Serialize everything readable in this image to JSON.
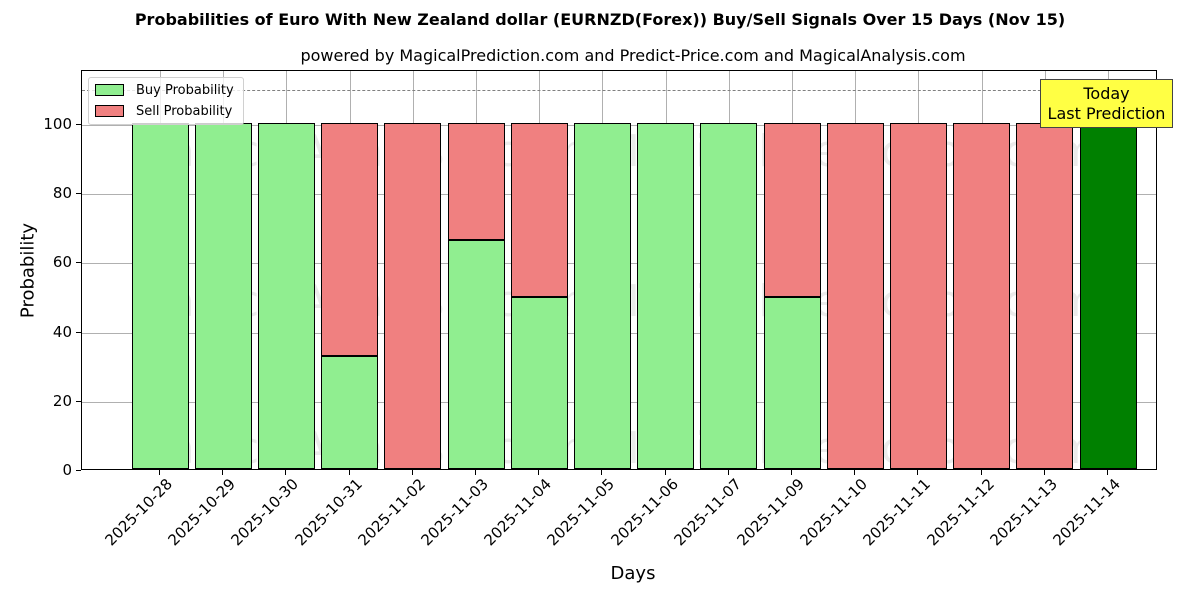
{
  "title": "Probabilities of Euro With New Zealand dollar (EURNZD(Forex)) Buy/Sell Signals Over 15 Days (Nov 15)",
  "subtitle": "powered by MagicalPrediction.com and Predict-Price.com and MagicalAnalysis.com",
  "legend": {
    "buy": "Buy Probability",
    "sell": "Sell Probability"
  },
  "annotation": {
    "line1": "Today",
    "line2": "Last Prediction"
  },
  "watermarks": [
    "MagicalAnalysis.com",
    "MagicalPrediction.com"
  ],
  "colors": {
    "buy": "#90ee90",
    "sell": "#f08080",
    "today": "#008000",
    "annotation_bg": "#ffff44",
    "refline": "#808080"
  },
  "chart_data": {
    "type": "bar",
    "stacked": true,
    "title": "Probabilities of Euro With New Zealand dollar (EURNZD(Forex)) Buy/Sell Signals Over 15 Days (Nov 15)",
    "subtitle": "powered by MagicalPrediction.com and Predict-Price.com and MagicalAnalysis.com",
    "xlabel": "Days",
    "ylabel": "Probability",
    "ylim": [
      0,
      115
    ],
    "yticks": [
      0,
      20,
      40,
      60,
      80,
      100
    ],
    "grid": true,
    "legend_position": "upper left",
    "reference_line": {
      "y": 110,
      "style": "dashed",
      "color": "#808080"
    },
    "categories": [
      "2025-10-28",
      "2025-10-29",
      "2025-10-30",
      "2025-10-31",
      "2025-11-02",
      "2025-11-03",
      "2025-11-04",
      "2025-11-05",
      "2025-11-06",
      "2025-11-07",
      "2025-11-09",
      "2025-11-10",
      "2025-11-11",
      "2025-11-12",
      "2025-11-13",
      "2025-11-14"
    ],
    "series": [
      {
        "name": "Buy Probability",
        "color": "#90ee90",
        "values": [
          100,
          100,
          100,
          32.7,
          0,
          66.2,
          49.7,
          100,
          100,
          100,
          49.7,
          0,
          0,
          0,
          0,
          100
        ]
      },
      {
        "name": "Sell Probability",
        "color": "#f08080",
        "values": [
          0,
          0,
          0,
          67.3,
          100,
          33.8,
          50.3,
          0,
          0,
          0,
          50.3,
          100,
          100,
          100,
          100,
          0
        ]
      }
    ],
    "highlight": {
      "category": "2025-11-14",
      "color": "#008000",
      "label": "Today\nLast Prediction"
    }
  }
}
